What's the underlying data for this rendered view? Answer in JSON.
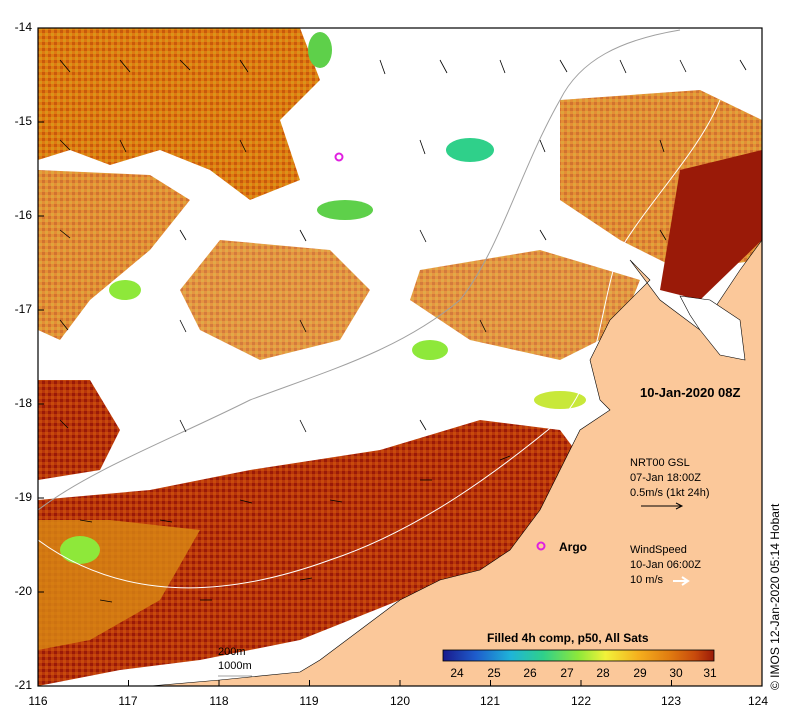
{
  "map": {
    "lat_ticks": [
      "-14",
      "-15",
      "-16",
      "-17",
      "-18",
      "-19",
      "-20",
      "-21"
    ],
    "lon_ticks": [
      "116",
      "117",
      "118",
      "119",
      "120",
      "121",
      "122",
      "123",
      "124"
    ],
    "date": "10-Jan-2020 08Z",
    "gsl": {
      "line1": "NRT00 GSL",
      "line2": "07-Jan 18:00Z",
      "line3": "0.5m/s (1kt 24h)"
    },
    "wind": {
      "line1": "WindSpeed",
      "line2": "10-Jan 06:00Z",
      "line3": "10 m/s"
    },
    "argo_label": "Argo",
    "isobaths": {
      "shallow": "200m",
      "deep": "1000m"
    },
    "colorbar": {
      "title": "Filled 4h comp, p50, All Sats",
      "ticks": [
        "24",
        "25",
        "26",
        "27",
        "28",
        "29",
        "30",
        "31"
      ],
      "colors": [
        "#1a1a8c",
        "#1e5ccc",
        "#1fb4d8",
        "#2fd08a",
        "#8ee83a",
        "#f2f23a",
        "#f5b01e",
        "#e07a10",
        "#c84a0c",
        "#9a1a08"
      ]
    },
    "credit": "© IMOS 12-Jan-2020 05:14 Hobart",
    "colors": {
      "land": "#fbc89a",
      "nodata": "#ffffff",
      "argo": "#e020e0"
    }
  }
}
